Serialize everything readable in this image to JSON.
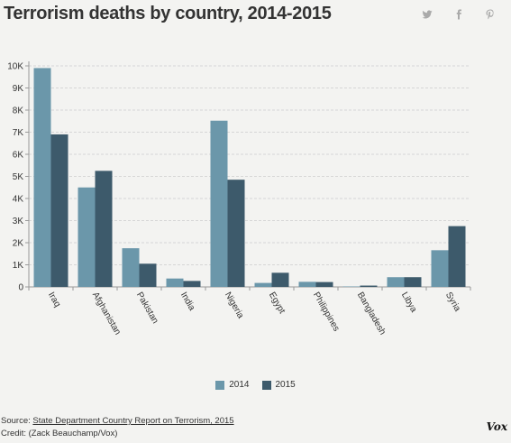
{
  "header": {
    "title": "Terrorism deaths by country, 2014-2015"
  },
  "share": {
    "twitter_icon": "twitter-icon",
    "facebook_icon": "facebook-icon",
    "pinterest_icon": "pinterest-icon"
  },
  "colors": {
    "series_2014": "#6b97aa",
    "series_2015": "#3d5a6b",
    "grid": "#d6d6d6",
    "axis": "#999999"
  },
  "chart_data": {
    "type": "bar",
    "title": "Terrorism deaths by country, 2014-2015",
    "xlabel": "",
    "ylabel": "",
    "categories": [
      "Iraq",
      "Afghanistan",
      "Pakistan",
      "India",
      "Nigeria",
      "Egypt",
      "Philippines",
      "Bangladesh",
      "Libya",
      "Syria"
    ],
    "series": [
      {
        "name": "2014",
        "values": [
          9900,
          4500,
          1750,
          380,
          7520,
          180,
          230,
          20,
          440,
          1660
        ]
      },
      {
        "name": "2015",
        "values": [
          6900,
          5250,
          1050,
          270,
          4850,
          640,
          220,
          60,
          440,
          2750
        ]
      }
    ],
    "ylim": [
      0,
      10000
    ],
    "yticks": [
      0,
      1000,
      2000,
      3000,
      4000,
      5000,
      6000,
      7000,
      8000,
      9000,
      10000
    ],
    "ytick_labels": [
      "0",
      "1K",
      "2K",
      "3K",
      "4K",
      "5K",
      "6K",
      "7K",
      "8K",
      "9K",
      "10K"
    ],
    "grid": true,
    "legend": "bottom-center"
  },
  "footer": {
    "source_prefix": "Source: ",
    "source_link": "State Department Country Report on Terrorism, 2015",
    "credit": "Credit: (Zack Beauchamp/Vox)",
    "brand": "Vox"
  }
}
